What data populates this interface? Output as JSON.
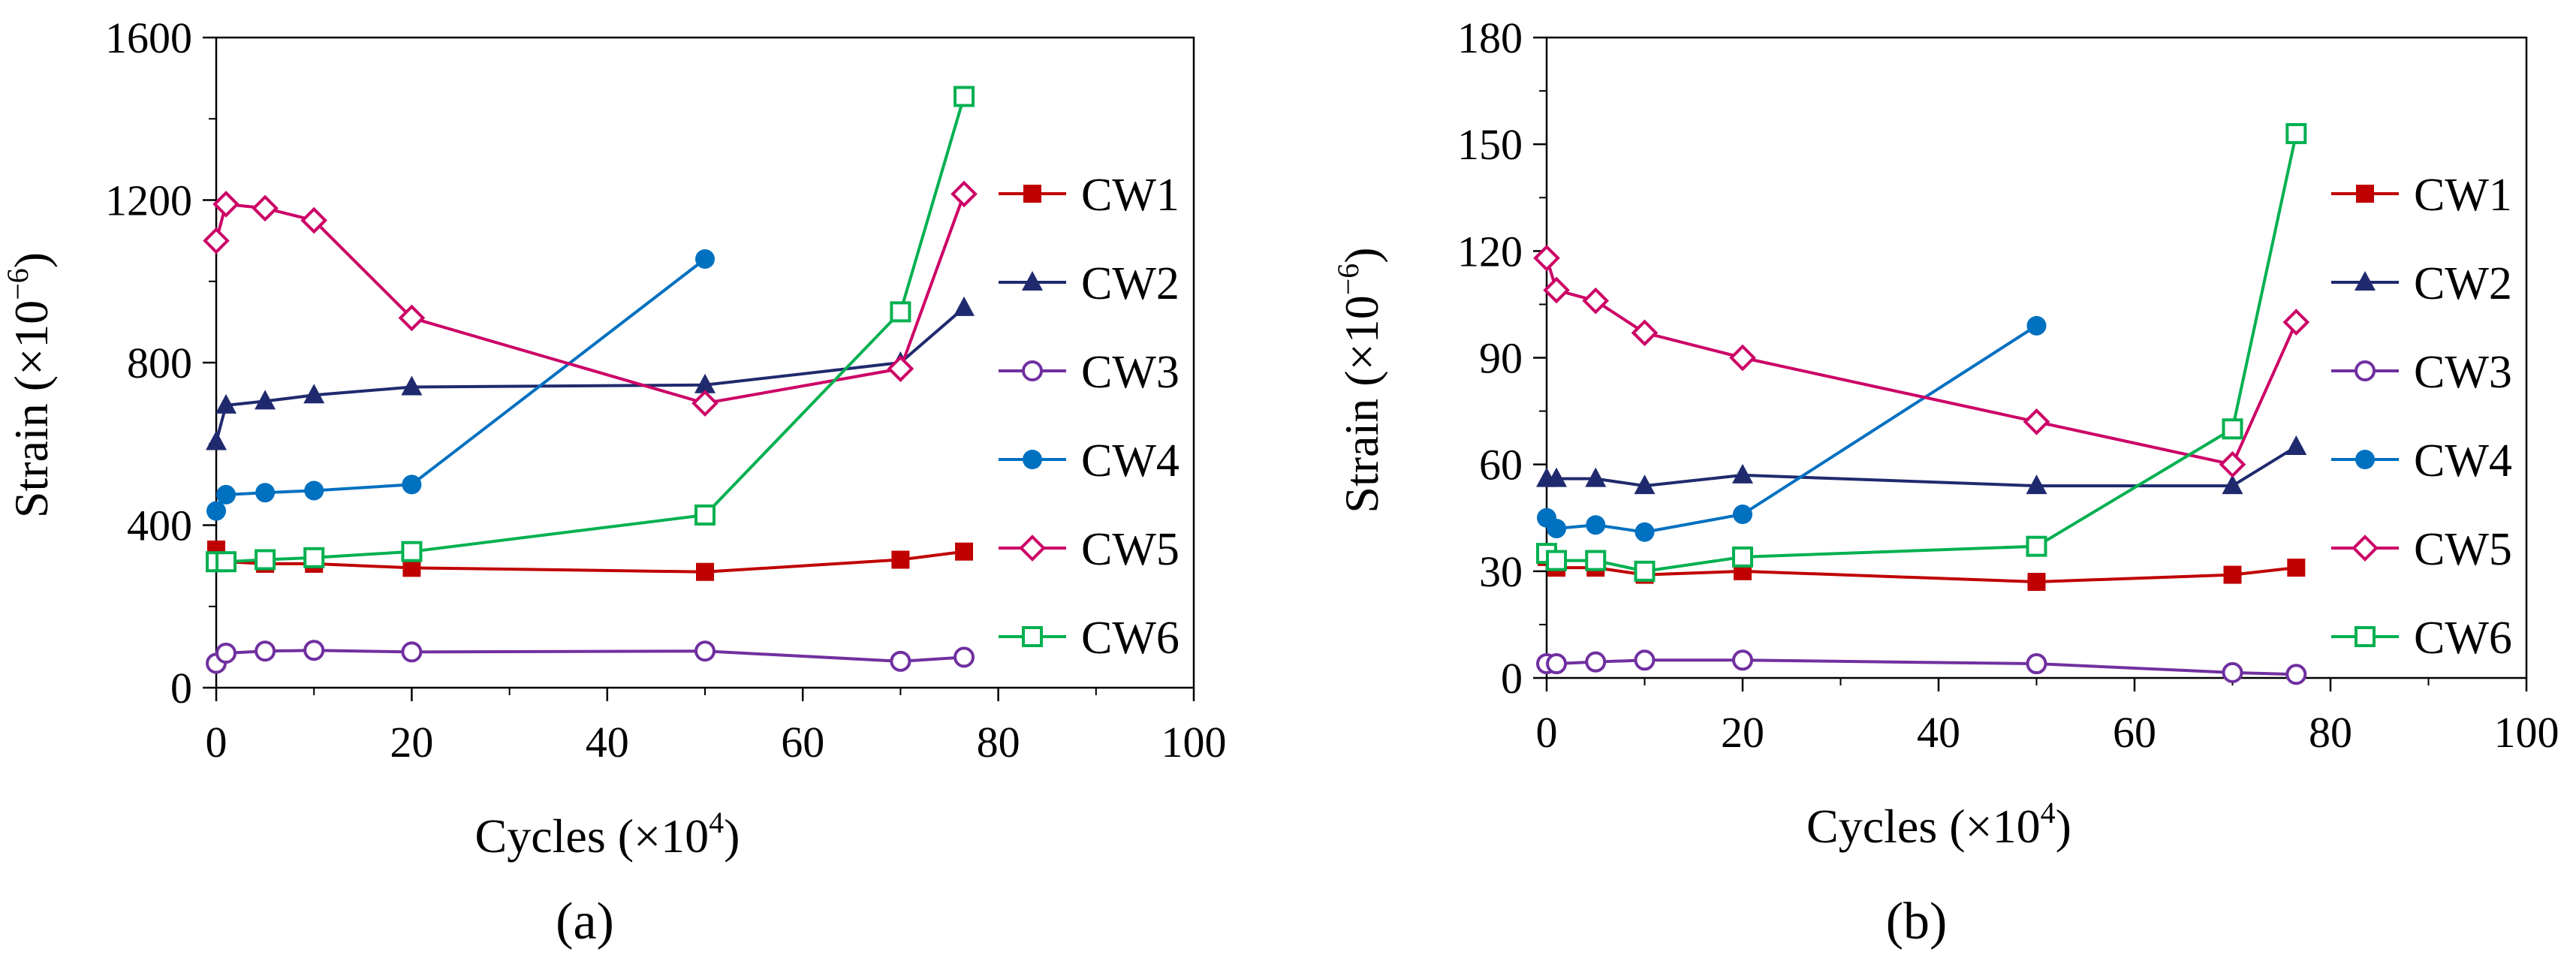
{
  "chart_data": [
    {
      "type": "line",
      "panel_label": "(a)",
      "xlabel": "Cycles (×10",
      "xlabel_sup": "4",
      "xlabel_end": ")",
      "ylabel": "Strain (×10",
      "ylabel_sup": "−6",
      "ylabel_end": ")",
      "xlim": [
        0,
        100
      ],
      "ylim": [
        0,
        1600
      ],
      "xticks": [
        0,
        20,
        40,
        60,
        80,
        100
      ],
      "yticks": [
        0,
        400,
        800,
        1200,
        1600
      ],
      "legend_position": "right",
      "series": [
        {
          "name": "CW1",
          "color": "#c00000",
          "marker": "square-filled",
          "x": [
            0,
            1,
            5,
            10,
            20,
            50,
            70,
            76.5
          ],
          "y": [
            340,
            310,
            305,
            305,
            295,
            285,
            315,
            335
          ]
        },
        {
          "name": "CW2",
          "color": "#1f2a6e",
          "marker": "triangle-filled",
          "x": [
            0,
            1,
            5,
            10,
            20,
            50,
            70,
            76.5
          ],
          "y": [
            605,
            695,
            705,
            720,
            740,
            745,
            800,
            935
          ]
        },
        {
          "name": "CW3",
          "color": "#7030a0",
          "marker": "circle-open",
          "x": [
            0,
            1,
            5,
            10,
            20,
            50,
            70,
            76.5
          ],
          "y": [
            60,
            85,
            90,
            92,
            88,
            90,
            65,
            75
          ]
        },
        {
          "name": "CW4",
          "color": "#0070c0",
          "marker": "circle-filled",
          "x": [
            0,
            1,
            5,
            10,
            20,
            50
          ],
          "y": [
            435,
            475,
            480,
            485,
            500,
            1055
          ]
        },
        {
          "name": "CW5",
          "color": "#cc0066",
          "marker": "diamond-open",
          "x": [
            0,
            1,
            5,
            10,
            20,
            50,
            70,
            76.5
          ],
          "y": [
            1100,
            1190,
            1180,
            1150,
            910,
            700,
            785,
            1215
          ]
        },
        {
          "name": "CW6",
          "color": "#00b050",
          "marker": "square-open",
          "x": [
            0,
            1,
            5,
            10,
            20,
            50,
            70,
            76.5
          ],
          "y": [
            310,
            310,
            315,
            320,
            335,
            425,
            925,
            1455
          ]
        }
      ]
    },
    {
      "type": "line",
      "panel_label": "(b)",
      "xlabel": "Cycles (×10",
      "xlabel_sup": "4",
      "xlabel_end": ")",
      "ylabel": "Strain (×10",
      "ylabel_sup": "−6",
      "ylabel_end": ")",
      "xlim": [
        0,
        100
      ],
      "ylim": [
        0,
        180
      ],
      "xticks": [
        0,
        20,
        40,
        60,
        80,
        100
      ],
      "yticks": [
        0,
        30,
        60,
        90,
        120,
        150,
        180
      ],
      "legend_position": "right",
      "series": [
        {
          "name": "CW1",
          "color": "#c00000",
          "marker": "square-filled",
          "x": [
            0,
            1,
            5,
            10,
            20,
            50,
            70,
            76.5
          ],
          "y": [
            34,
            31,
            31,
            29,
            30,
            27,
            29,
            31
          ]
        },
        {
          "name": "CW2",
          "color": "#1f2a6e",
          "marker": "triangle-filled",
          "x": [
            0,
            1,
            5,
            10,
            20,
            50,
            70,
            76.5
          ],
          "y": [
            56,
            56,
            56,
            54,
            57,
            54,
            54,
            65
          ]
        },
        {
          "name": "CW3",
          "color": "#7030a0",
          "marker": "circle-open",
          "x": [
            0,
            1,
            5,
            10,
            20,
            50,
            70,
            76.5
          ],
          "y": [
            4,
            4,
            4.5,
            5,
            5,
            4,
            1.5,
            1
          ]
        },
        {
          "name": "CW4",
          "color": "#0070c0",
          "marker": "circle-filled",
          "x": [
            0,
            1,
            5,
            10,
            20,
            50
          ],
          "y": [
            45,
            42,
            43,
            41,
            46,
            99
          ]
        },
        {
          "name": "CW5",
          "color": "#cc0066",
          "marker": "diamond-open",
          "x": [
            0,
            1,
            5,
            10,
            20,
            50,
            70,
            76.5
          ],
          "y": [
            118,
            109,
            106,
            97,
            90,
            72,
            60,
            100
          ]
        },
        {
          "name": "CW6",
          "color": "#00b050",
          "marker": "square-open",
          "x": [
            0,
            1,
            5,
            10,
            20,
            50,
            70,
            76.5
          ],
          "y": [
            35,
            33,
            33,
            30,
            34,
            37,
            70,
            153
          ]
        }
      ]
    }
  ]
}
